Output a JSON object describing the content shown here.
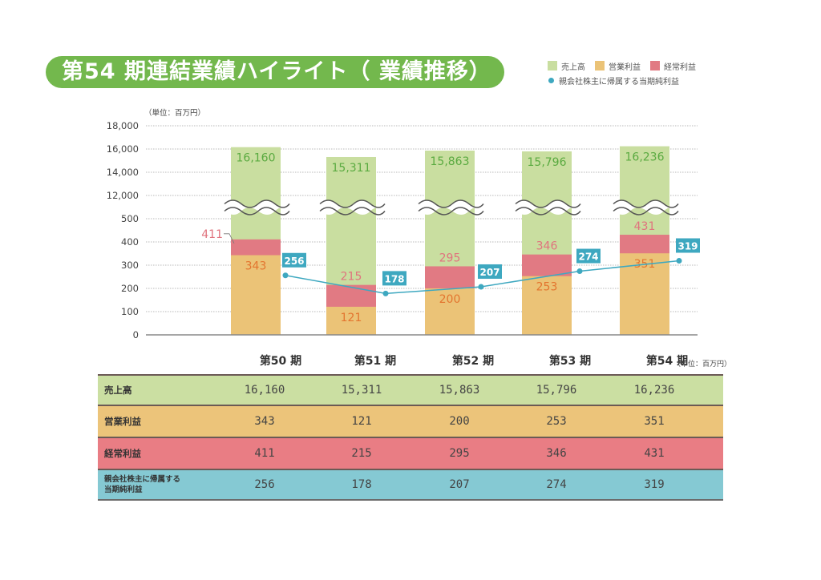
{
  "title": "第54 期連結業績ハイライト（ 業績推移）",
  "legend": {
    "items": [
      {
        "label": "売上高",
        "color": "#c9dea0"
      },
      {
        "label": "営業利益",
        "color": "#ebc377"
      },
      {
        "label": "経常利益",
        "color": "#e17a83"
      }
    ],
    "line_item": {
      "label": "親会社株主に帰属する当期純利益",
      "color": "#3ea8c0"
    }
  },
  "chart_data": {
    "type": "bar",
    "title": "第54 期連結業績ハイライト（ 業績推移）",
    "unit_label": "（単位：百万円）",
    "xlabel": "",
    "ylabel": "",
    "categories": [
      "第50 期",
      "第51 期",
      "第52 期",
      "第53 期",
      "第54 期"
    ],
    "y_ticks_lower": [
      "0",
      "100",
      "200",
      "300",
      "400",
      "500"
    ],
    "y_ticks_upper": [
      "12,000",
      "14,000",
      "16,000",
      "18,000"
    ],
    "ylim_lower": [
      0,
      500
    ],
    "ylim_upper": [
      12000,
      18000
    ],
    "axis_break": true,
    "grid": true,
    "legend_position": "top-right",
    "series": [
      {
        "name": "売上高",
        "type": "bar",
        "color": "#c9dea0",
        "label_color": "#5aaa40",
        "values": [
          16160,
          15311,
          15863,
          15796,
          16236
        ],
        "labels": [
          "16,160",
          "15,311",
          "15,863",
          "15,796",
          "16,236"
        ]
      },
      {
        "name": "営業利益",
        "type": "bar",
        "color": "#ebc377",
        "label_color": "#e3752f",
        "values": [
          343,
          121,
          200,
          253,
          351
        ],
        "labels": [
          "343",
          "121",
          "200",
          "253",
          "351"
        ]
      },
      {
        "name": "経常利益",
        "type": "bar",
        "color": "#e17a83",
        "label_color": "#e0737e",
        "values": [
          411,
          215,
          295,
          346,
          431
        ],
        "labels": [
          "411",
          "215",
          "295",
          "346",
          "431"
        ]
      },
      {
        "name": "親会社株主に帰属する当期純利益",
        "type": "line",
        "color": "#3ea8c0",
        "values": [
          256,
          178,
          207,
          274,
          319
        ],
        "labels": [
          "256",
          "178",
          "207",
          "274",
          "319"
        ]
      }
    ]
  },
  "table": {
    "unit_label": "（単位：百万円）",
    "headers": [
      "第50 期",
      "第51 期",
      "第52 期",
      "第53 期",
      "第54 期"
    ],
    "rows": [
      {
        "label": "売上高",
        "color": "#cbdfa2",
        "values": [
          "16,160",
          "15,311",
          "15,863",
          "15,796",
          "16,236"
        ]
      },
      {
        "label": "営業利益",
        "color": "#ecc47a",
        "values": [
          "343",
          "121",
          "200",
          "253",
          "351"
        ]
      },
      {
        "label": "経常利益",
        "color": "#e97d84",
        "values": [
          "411",
          "215",
          "295",
          "346",
          "431"
        ]
      },
      {
        "label_line1": "親会社株主に帰属する",
        "label_line2": "当期純利益",
        "color": "#85c9d3",
        "values": [
          "256",
          "178",
          "207",
          "274",
          "319"
        ]
      }
    ]
  }
}
